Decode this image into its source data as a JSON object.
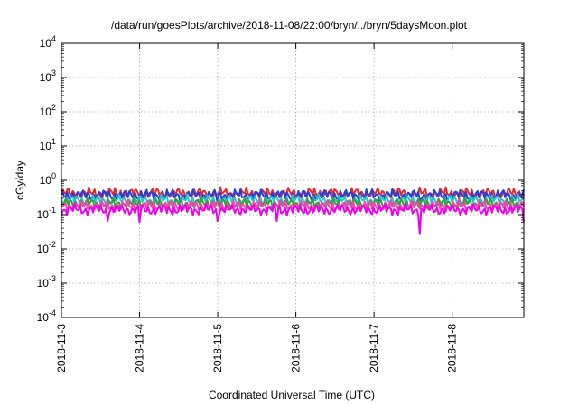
{
  "chart_data": {
    "type": "line",
    "title": "/data/run/goesPlots/archive/2018-11-08/22:00/bryn/../bryn/5daysMoon.plot",
    "xlabel": "Coordinated Universal Time (UTC)",
    "ylabel": "cGy/day",
    "y_scale": "log",
    "ylim": [
      0.0001,
      10000
    ],
    "y_ticks": [
      {
        "value": 0.0001,
        "base": "10",
        "exp": "-4"
      },
      {
        "value": 0.001,
        "base": "10",
        "exp": "-3"
      },
      {
        "value": 0.01,
        "base": "10",
        "exp": "-2"
      },
      {
        "value": 0.1,
        "base": "10",
        "exp": "-1"
      },
      {
        "value": 1,
        "base": "10",
        "exp": "0"
      },
      {
        "value": 10,
        "base": "10",
        "exp": "1"
      },
      {
        "value": 100,
        "base": "10",
        "exp": "2"
      },
      {
        "value": 1000,
        "base": "10",
        "exp": "3"
      },
      {
        "value": 10000,
        "base": "10",
        "exp": "4"
      }
    ],
    "xlim": [
      "2018-11-03",
      "2018-11-08T22:00"
    ],
    "x_ticks": [
      "2018-11-3",
      "2018-11-4",
      "2018-11-5",
      "2018-11-6",
      "2018-11-7",
      "2018-11-8"
    ],
    "grid": true,
    "series": [
      {
        "color": "#e8262b",
        "level": 0.42,
        "dips": []
      },
      {
        "color": "#1f3fe0",
        "level": 0.37,
        "dips": [
          {
            "x": "2018-11-05",
            "value": 0.22
          },
          {
            "x": "2018-11-07T14:00",
            "value": 0.25
          }
        ]
      },
      {
        "color": "#22c8c8",
        "level": 0.26,
        "dips": []
      },
      {
        "color": "#3c9c3c",
        "level": 0.21,
        "dips": []
      },
      {
        "color": "#ff3fb4",
        "level": 0.18,
        "dips": []
      },
      {
        "color": "#ee00ee",
        "level": 0.14,
        "dips": [
          {
            "x": "2018-11-03T14:00",
            "value": 0.065
          },
          {
            "x": "2018-11-04",
            "value": 0.06
          },
          {
            "x": "2018-11-05",
            "value": 0.065
          },
          {
            "x": "2018-11-05T18:00",
            "value": 0.065
          },
          {
            "x": "2018-11-07T14:00",
            "value": 0.027
          },
          {
            "x": "2018-11-08T22:00",
            "value": 0.06
          }
        ]
      }
    ]
  }
}
